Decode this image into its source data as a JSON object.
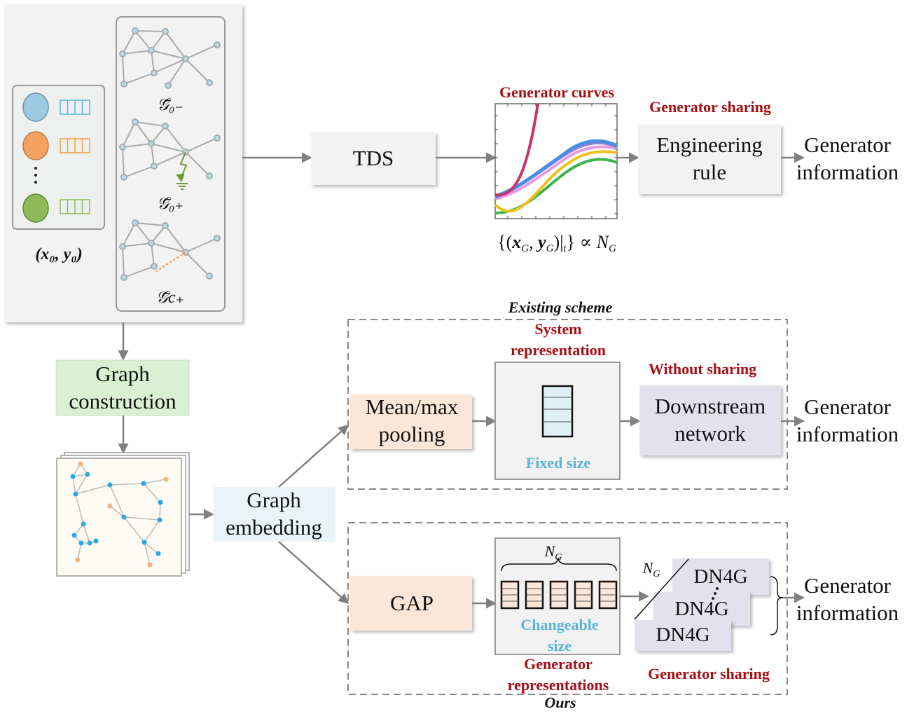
{
  "colors": {
    "red": "#a50f15",
    "cyan": "#5ab4d6",
    "arrow": "#808080",
    "graph_construction": "#d9f0d2",
    "graph_embedding": "#e8f4f8",
    "pooling": "#fbe6d8",
    "downstream": "#e4e1ee",
    "node_blue": "#9ecae1",
    "node_orange": "#f4a261",
    "node_green": "#8fb957"
  },
  "input": {
    "state_label": "(x₀, y₀)",
    "graph_labels": [
      "𝒢̄₀₋",
      "𝒢̄₀₊",
      "𝒢̄c₊"
    ]
  },
  "tds": {
    "label": "TDS"
  },
  "curves": {
    "title": "Generator curves",
    "formula": "{(x_G, y_G)|_t} ∝ N_G"
  },
  "top_right": {
    "sharing_label": "Generator sharing",
    "rule_line1": "Engineering",
    "rule_line2": "rule",
    "output_line1": "Generator",
    "output_line2": "information"
  },
  "graph_construction": {
    "line1": "Graph",
    "line2": "construction"
  },
  "graph_embedding": {
    "line1": "Graph",
    "line2": "embedding"
  },
  "existing": {
    "title": "Existing scheme",
    "sysrep_line1": "System",
    "sysrep_line2": "representation",
    "pool_line1": "Mean/max",
    "pool_line2": "pooling",
    "fixed_size": "Fixed size",
    "without_sharing": "Without sharing",
    "down_line1": "Downstream",
    "down_line2": "network",
    "output_line1": "Generator",
    "output_line2": "information"
  },
  "ours": {
    "title": "Ours",
    "gap": "GAP",
    "ng": "N",
    "ng_sub": "G",
    "changeable_line1": "Changeable",
    "changeable_line2": "size",
    "genrep_line1": "Generator",
    "genrep_line2": "representations",
    "dn4g": [
      "DN4G",
      "DN4G",
      "DN4G"
    ],
    "sharing_label": "Generator sharing",
    "output_line1": "Generator",
    "output_line2": "information"
  }
}
